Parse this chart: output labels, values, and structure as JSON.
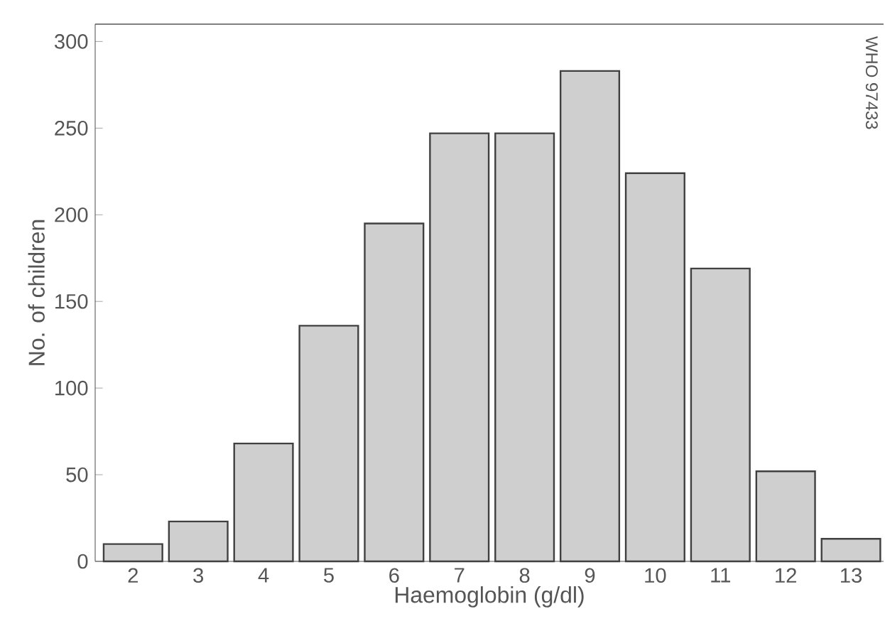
{
  "chart_data": {
    "type": "bar",
    "xlabel": "Haemoglobin (g/dl)",
    "ylabel": "No. of children",
    "categories": [
      "2",
      "3",
      "4",
      "5",
      "6",
      "7",
      "8",
      "9",
      "10",
      "11",
      "12",
      "13"
    ],
    "values": [
      10,
      23,
      68,
      136,
      195,
      247,
      247,
      283,
      224,
      169,
      52,
      13
    ],
    "color": "#cfcfcf",
    "ylim": [
      0,
      310
    ],
    "yticks": [
      0,
      50,
      100,
      150,
      200,
      250,
      300
    ],
    "grid": false,
    "annotations": [
      "WHO 97433"
    ]
  }
}
